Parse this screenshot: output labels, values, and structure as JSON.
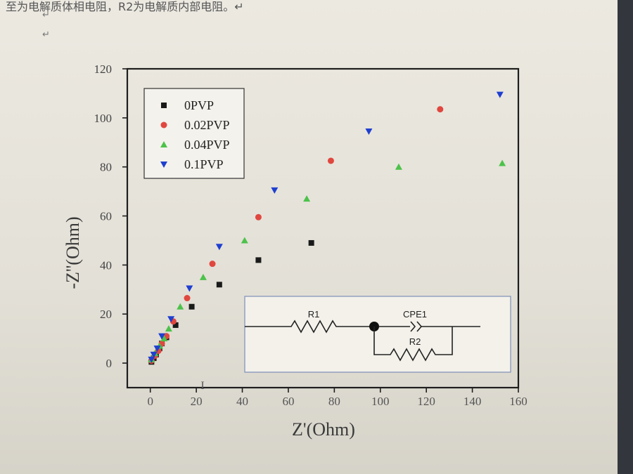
{
  "document": {
    "top_line": "至为电解质体相电阻，R2为电解质内部电阻。↵",
    "para_marks": [
      "↵",
      "↵"
    ]
  },
  "colors": {
    "0PVP": "#1a1a1a",
    "0.02PVP": "#e0473f",
    "0.04PVP": "#4cc24a",
    "0.1PVP": "#1f3fd0"
  },
  "chart_data": {
    "type": "scatter",
    "title": "",
    "xlabel": "Z'(Ohm)",
    "ylabel": "-Z''(Ohm)",
    "xlim": [
      -10,
      160
    ],
    "ylim": [
      -10,
      120
    ],
    "xticks": [
      "0",
      "20",
      "40",
      "60",
      "80",
      "100",
      "120",
      "140",
      "160"
    ],
    "yticks": [
      "0",
      "20",
      "40",
      "60",
      "80",
      "100",
      "120"
    ],
    "legend_position": "top-left",
    "series": [
      {
        "name": "0PVP",
        "marker": "square",
        "points": [
          [
            0.5,
            0.5
          ],
          [
            1.5,
            2
          ],
          [
            2.5,
            3.5
          ],
          [
            4,
            6
          ],
          [
            5,
            8
          ],
          [
            7,
            10.5
          ],
          [
            11,
            15.5
          ],
          [
            18,
            23
          ],
          [
            30,
            32
          ],
          [
            47,
            42
          ],
          [
            70,
            49
          ]
        ]
      },
      {
        "name": "0.02PVP",
        "marker": "circle",
        "points": [
          [
            0.5,
            1
          ],
          [
            2,
            3
          ],
          [
            3.5,
            5
          ],
          [
            5,
            8
          ],
          [
            7,
            11
          ],
          [
            10,
            17
          ],
          [
            16,
            26.5
          ],
          [
            27,
            40.5
          ],
          [
            47,
            59.5
          ],
          [
            78.5,
            82.5
          ],
          [
            126,
            103.5
          ]
        ]
      },
      {
        "name": "0.04PVP",
        "marker": "triangle-up",
        "points": [
          [
            0.5,
            1.5
          ],
          [
            2,
            4
          ],
          [
            4,
            7
          ],
          [
            6,
            10
          ],
          [
            8,
            14
          ],
          [
            13,
            23
          ],
          [
            23,
            35
          ],
          [
            41,
            50
          ],
          [
            68,
            67
          ],
          [
            108,
            80
          ],
          [
            153,
            81.5
          ]
        ]
      },
      {
        "name": "0.1PVP",
        "marker": "triangle-down",
        "points": [
          [
            0.5,
            1.5
          ],
          [
            1.5,
            3.5
          ],
          [
            3,
            6
          ],
          [
            5,
            11
          ],
          [
            9,
            18
          ],
          [
            17,
            30.5
          ],
          [
            30,
            47.5
          ],
          [
            54,
            70.5
          ],
          [
            95,
            94.5
          ],
          [
            152,
            109.5
          ]
        ]
      }
    ]
  },
  "circuit": {
    "r1_label": "R1",
    "cpe_label": "CPE1",
    "r2_label": "R2"
  },
  "stray_mark": "I"
}
